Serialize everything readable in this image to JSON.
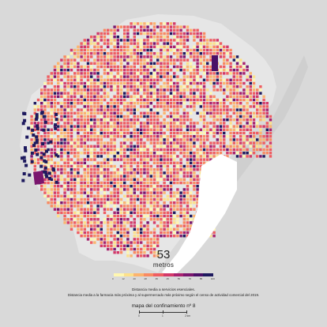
{
  "map": {
    "headline_value": "53",
    "headline_unit": "metros",
    "legend": {
      "ticks": [
        "0",
        "12",
        "20",
        "28",
        "35",
        "45",
        "55",
        "70",
        "85",
        "100"
      ],
      "colors": [
        "#fff7b0",
        "#fde08a",
        "#fcb46e",
        "#f98a62",
        "#ef5d62",
        "#d33a6a",
        "#a8226f",
        "#7a166e",
        "#4a1068",
        "#1e1a5e"
      ]
    },
    "caption_title": "Distancia media a servicios esenciales.",
    "caption_text": "Distancia media a la farmacia más próxima y al supermercado más próximo según el censo de actividad comercial del 2019.",
    "title": "mapa del confinamiento nº 8",
    "scale": {
      "labels": [
        "0",
        "1",
        "2 km"
      ]
    },
    "colors": {
      "background": "#d9d9d9",
      "land": "#e6e6e6",
      "built": "#cfcfcf",
      "sea": "#d9d9d9",
      "port": "#ffffff"
    }
  }
}
